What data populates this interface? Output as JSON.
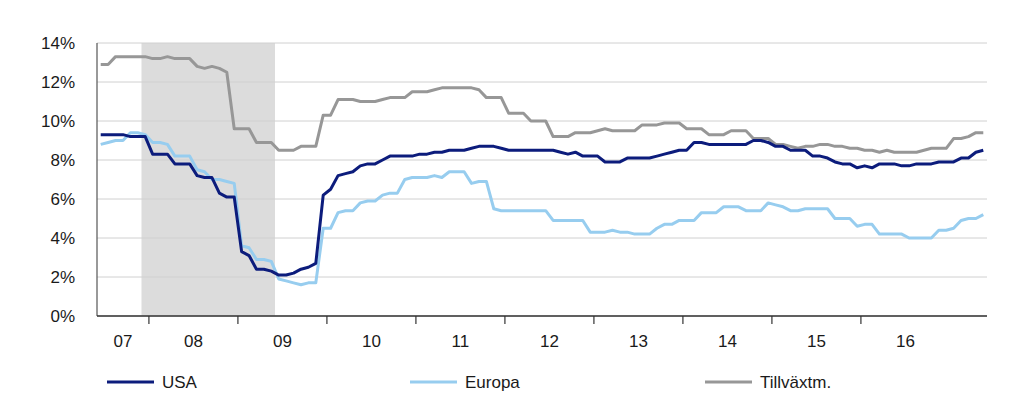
{
  "chart_data": {
    "type": "line",
    "categories": [
      "07",
      null,
      null,
      null,
      null,
      null,
      null,
      "08",
      null,
      null,
      null,
      null,
      null,
      null,
      null,
      null,
      null,
      null,
      null,
      "09",
      null,
      null,
      null,
      null,
      null,
      null,
      null,
      null,
      null,
      null,
      null,
      "10",
      null,
      null,
      null,
      null,
      null,
      null,
      null,
      null,
      null,
      null,
      null,
      "11",
      null,
      null,
      null,
      null,
      null,
      null,
      null,
      null,
      null,
      null,
      null,
      "12",
      null,
      null,
      null,
      null,
      null,
      null,
      null,
      null,
      null,
      null,
      null,
      "13",
      null,
      null,
      null,
      null,
      null,
      null,
      null,
      null,
      null,
      null,
      null,
      "14",
      null,
      null,
      null,
      null,
      null,
      null,
      null,
      null,
      null,
      null,
      null,
      "15",
      null,
      null,
      null,
      null,
      null,
      null,
      null,
      null,
      null,
      null,
      null,
      "16",
      null,
      null,
      null,
      null,
      null,
      null,
      null,
      null,
      null,
      null,
      null,
      null,
      null,
      null,
      null,
      null
    ],
    "series": [
      {
        "name": "USA",
        "color": "#0c1c7c",
        "values": [
          9.3,
          9.3,
          9.3,
          9.3,
          9.2,
          9.2,
          9.2,
          8.3,
          8.3,
          8.3,
          7.8,
          7.8,
          7.8,
          7.2,
          7.1,
          7.1,
          6.3,
          6.1,
          6.1,
          3.3,
          3.1,
          2.4,
          2.4,
          2.3,
          2.1,
          2.1,
          2.2,
          2.4,
          2.5,
          2.7,
          6.2,
          6.5,
          7.2,
          7.3,
          7.4,
          7.7,
          7.8,
          7.8,
          8.0,
          8.2,
          8.2,
          8.2,
          8.2,
          8.3,
          8.3,
          8.4,
          8.4,
          8.5,
          8.5,
          8.5,
          8.6,
          8.7,
          8.7,
          8.7,
          8.6,
          8.5,
          8.5,
          8.5,
          8.5,
          8.5,
          8.5,
          8.5,
          8.4,
          8.3,
          8.4,
          8.2,
          8.2,
          8.2,
          7.9,
          7.9,
          7.9,
          8.1,
          8.1,
          8.1,
          8.1,
          8.2,
          8.3,
          8.4,
          8.5,
          8.5,
          8.9,
          8.9,
          8.8,
          8.8,
          8.8,
          8.8,
          8.8,
          8.8,
          9.0,
          9.0,
          8.9,
          8.7,
          8.7,
          8.5,
          8.5,
          8.5,
          8.2,
          8.2,
          8.1,
          7.9,
          7.8,
          7.8,
          7.6,
          7.7,
          7.6,
          7.8,
          7.8,
          7.8,
          7.7,
          7.7,
          7.8,
          7.8,
          7.8,
          7.9,
          7.9,
          7.9,
          8.1,
          8.1,
          8.4,
          8.5
        ]
      },
      {
        "name": "Europa",
        "color": "#97cdef",
        "values": [
          8.8,
          8.9,
          9.0,
          9.0,
          9.4,
          9.4,
          9.3,
          8.9,
          8.9,
          8.8,
          8.2,
          8.2,
          8.2,
          7.5,
          7.4,
          7.0,
          7.0,
          6.9,
          6.8,
          3.6,
          3.5,
          2.9,
          2.9,
          2.8,
          1.9,
          1.8,
          1.7,
          1.6,
          1.7,
          1.7,
          4.5,
          4.5,
          5.3,
          5.4,
          5.4,
          5.8,
          5.9,
          5.9,
          6.2,
          6.3,
          6.3,
          7.0,
          7.1,
          7.1,
          7.1,
          7.2,
          7.1,
          7.4,
          7.4,
          7.4,
          6.8,
          6.9,
          6.9,
          5.5,
          5.4,
          5.4,
          5.4,
          5.4,
          5.4,
          5.4,
          5.4,
          4.9,
          4.9,
          4.9,
          4.9,
          4.9,
          4.3,
          4.3,
          4.3,
          4.4,
          4.3,
          4.3,
          4.2,
          4.2,
          4.2,
          4.5,
          4.7,
          4.7,
          4.9,
          4.9,
          4.9,
          5.3,
          5.3,
          5.3,
          5.6,
          5.6,
          5.6,
          5.4,
          5.4,
          5.4,
          5.8,
          5.7,
          5.6,
          5.4,
          5.4,
          5.5,
          5.5,
          5.5,
          5.5,
          5.0,
          5.0,
          5.0,
          4.6,
          4.7,
          4.7,
          4.2,
          4.2,
          4.2,
          4.2,
          4.0,
          4.0,
          4.0,
          4.0,
          4.4,
          4.4,
          4.5,
          4.9,
          5.0,
          5.0,
          5.2
        ]
      },
      {
        "name": "Tillväxtm.",
        "color": "#979797",
        "values": [
          12.9,
          12.9,
          13.3,
          13.3,
          13.3,
          13.3,
          13.3,
          13.2,
          13.2,
          13.3,
          13.2,
          13.2,
          13.2,
          12.8,
          12.7,
          12.8,
          12.7,
          12.5,
          9.6,
          9.6,
          9.6,
          8.9,
          8.9,
          8.9,
          8.5,
          8.5,
          8.5,
          8.7,
          8.7,
          8.7,
          10.3,
          10.3,
          11.1,
          11.1,
          11.1,
          11.0,
          11.0,
          11.0,
          11.1,
          11.2,
          11.2,
          11.2,
          11.5,
          11.5,
          11.5,
          11.6,
          11.7,
          11.7,
          11.7,
          11.7,
          11.7,
          11.6,
          11.2,
          11.2,
          11.2,
          10.4,
          10.4,
          10.4,
          10.0,
          10.0,
          10.0,
          9.2,
          9.2,
          9.2,
          9.4,
          9.4,
          9.4,
          9.5,
          9.6,
          9.5,
          9.5,
          9.5,
          9.5,
          9.8,
          9.8,
          9.8,
          9.9,
          9.9,
          9.9,
          9.6,
          9.6,
          9.6,
          9.3,
          9.3,
          9.3,
          9.5,
          9.5,
          9.5,
          9.1,
          9.1,
          9.1,
          8.8,
          8.8,
          8.7,
          8.6,
          8.7,
          8.7,
          8.8,
          8.8,
          8.7,
          8.7,
          8.6,
          8.6,
          8.5,
          8.5,
          8.4,
          8.5,
          8.4,
          8.4,
          8.4,
          8.4,
          8.5,
          8.6,
          8.6,
          8.6,
          9.1,
          9.1,
          9.2,
          9.4,
          9.4
        ]
      }
    ],
    "ylim": [
      0,
      14
    ],
    "yticks": [
      {
        "value": 0,
        "label": "0%"
      },
      {
        "value": 2,
        "label": "2%"
      },
      {
        "value": 4,
        "label": "4%"
      },
      {
        "value": 6,
        "label": "6%"
      },
      {
        "value": 8,
        "label": "8%"
      },
      {
        "value": 10,
        "label": "10%"
      },
      {
        "value": 12,
        "label": "12%"
      },
      {
        "value": 14,
        "label": "14%"
      }
    ],
    "grid": true,
    "legend": "bottom",
    "shaded_span": {
      "from_index": 6,
      "to_index": 23
    }
  }
}
